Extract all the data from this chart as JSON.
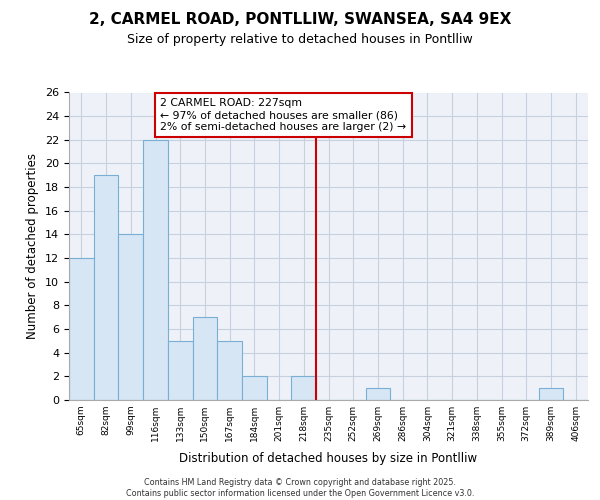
{
  "title": "2, CARMEL ROAD, PONTLLIW, SWANSEA, SA4 9EX",
  "subtitle": "Size of property relative to detached houses in Pontlliw",
  "xlabel": "Distribution of detached houses by size in Pontlliw",
  "ylabel": "Number of detached properties",
  "categories": [
    "65sqm",
    "82sqm",
    "99sqm",
    "116sqm",
    "133sqm",
    "150sqm",
    "167sqm",
    "184sqm",
    "201sqm",
    "218sqm",
    "235sqm",
    "252sqm",
    "269sqm",
    "286sqm",
    "304sqm",
    "321sqm",
    "338sqm",
    "355sqm",
    "372sqm",
    "389sqm",
    "406sqm"
  ],
  "values": [
    12,
    19,
    14,
    22,
    5,
    7,
    5,
    2,
    0,
    2,
    0,
    0,
    1,
    0,
    0,
    0,
    0,
    0,
    0,
    1,
    0
  ],
  "bar_color": "#d6e6f5",
  "bar_edge_color": "#7aafd4",
  "vline_index": 10,
  "vline_color": "#cc0000",
  "annotation_text": "2 CARMEL ROAD: 227sqm\n← 97% of detached houses are smaller (86)\n2% of semi-detached houses are larger (2) →",
  "annotation_box_color": "#cc0000",
  "ylim": [
    0,
    26
  ],
  "yticks": [
    0,
    2,
    4,
    6,
    8,
    10,
    12,
    14,
    16,
    18,
    20,
    22,
    24,
    26
  ],
  "grid_color": "#c8d0e0",
  "background_color": "#eef2f8",
  "footer_line1": "Contains HM Land Registry data © Crown copyright and database right 2025.",
  "footer_line2": "Contains public sector information licensed under the Open Government Licence v3.0."
}
